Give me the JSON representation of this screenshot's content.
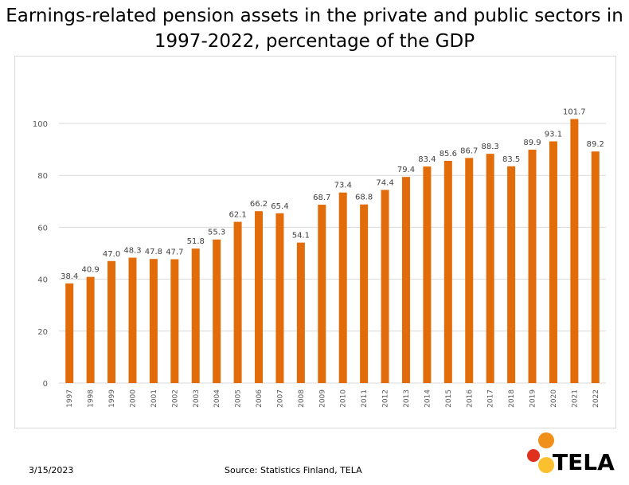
{
  "title_lines": [
    "Earnings-related pension assets in the private and public sectors in",
    "1997-2022, percentage of the GDP"
  ],
  "footer": {
    "date": "3/15/2023",
    "source": "Source: Statistics Finland, TELA"
  },
  "logo": {
    "text": "TELA",
    "colors": {
      "orange": "#f18f1b",
      "red": "#e0301e",
      "yellow": "#fbc02d"
    }
  },
  "colors": {
    "bar": "#e36c0a",
    "grid": "#d9d9d9",
    "label": "#404040",
    "axis_text": "#595959"
  },
  "chart_data": {
    "type": "bar",
    "categories": [
      "1997",
      "1998",
      "1999",
      "2000",
      "2001",
      "2002",
      "2003",
      "2004",
      "2005",
      "2006",
      "2007",
      "2008",
      "2009",
      "2010",
      "2011",
      "2012",
      "2013",
      "2014",
      "2015",
      "2016",
      "2017",
      "2018",
      "2019",
      "2020",
      "2021",
      "2022"
    ],
    "values": [
      38.4,
      40.9,
      47.0,
      48.3,
      47.8,
      47.7,
      51.8,
      55.3,
      62.1,
      66.2,
      65.4,
      54.1,
      68.7,
      73.4,
      68.8,
      74.4,
      79.4,
      83.4,
      85.6,
      86.7,
      88.3,
      83.5,
      89.9,
      93.1,
      101.7,
      89.2
    ],
    "value_labels": [
      "38.4",
      "40.9",
      "47.0",
      "48.3",
      "47.8",
      "47.7",
      "51.8",
      "55.3",
      "62.1",
      "66.2",
      "65.4",
      "54.1",
      "68.7",
      "73.4",
      "68.8",
      "74.4",
      "79.4",
      "83.4",
      "85.6",
      "86.7",
      "88.3",
      "83.5",
      "89.9",
      "93.1",
      "101.7",
      "89.2"
    ],
    "yticks": [
      "0",
      "20",
      "40",
      "60",
      "80",
      "100"
    ],
    "ylim": [
      0,
      100
    ],
    "grid": true,
    "legend": "none"
  }
}
